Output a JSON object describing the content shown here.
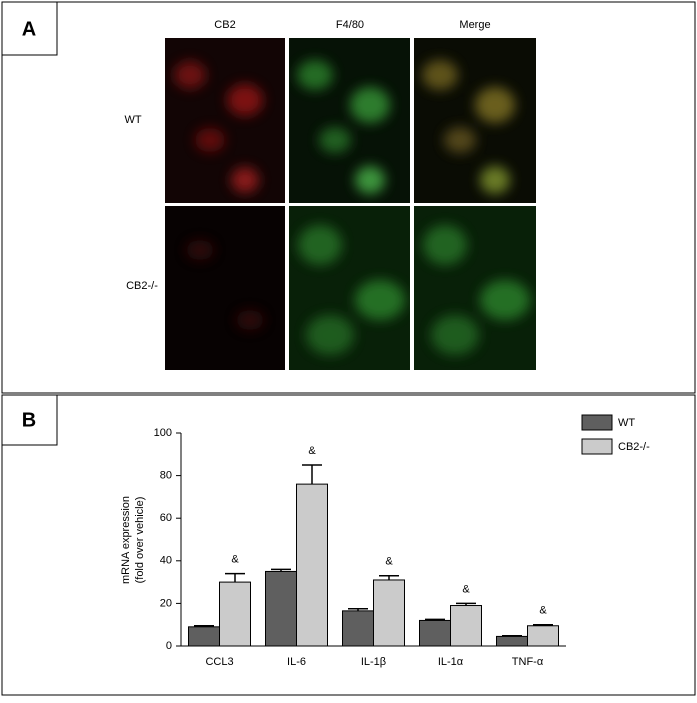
{
  "panels": [
    {
      "label": "A"
    },
    {
      "label": "B"
    }
  ],
  "images": {
    "columns": [
      "CB2",
      "F4/80",
      "Merge"
    ],
    "rows": [
      "WT",
      "CB2-/-"
    ]
  },
  "chart_data": {
    "type": "bar",
    "y_label": [
      "mRNA expression",
      "(fold over vehicle)"
    ],
    "categories": [
      "CCL3",
      "IL-6",
      "IL-1β",
      "IL-1α",
      "TNF-α"
    ],
    "series": [
      {
        "name": "WT",
        "color": "#5f5f5f",
        "values": [
          9,
          35,
          16.5,
          12,
          4.5
        ],
        "errors": [
          0.5,
          1,
          1,
          0.5,
          0.3
        ]
      },
      {
        "name": "CB2-/-",
        "color": "#cbcbcb",
        "values": [
          30,
          76,
          31,
          19,
          9.5
        ],
        "errors": [
          4,
          9,
          2,
          1,
          0.5
        ]
      }
    ],
    "annotations": [
      "&",
      "&",
      "&",
      "&",
      "&"
    ],
    "ylim": [
      0,
      100
    ],
    "yticks": [
      0,
      20,
      40,
      60,
      80,
      100
    ],
    "grid": false
  }
}
